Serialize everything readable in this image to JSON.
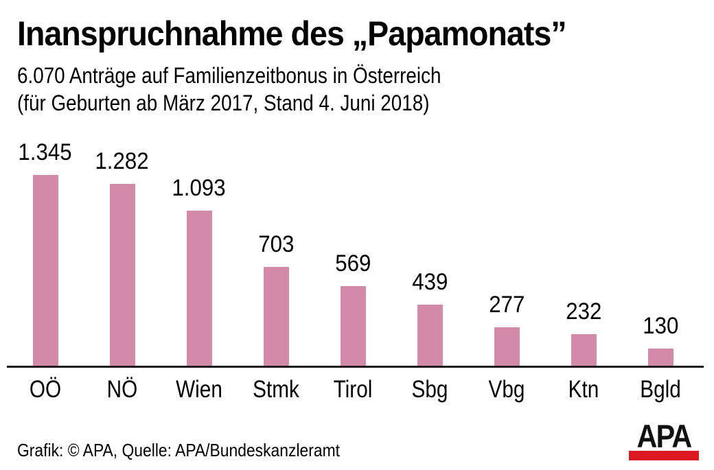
{
  "title": "Inanspruchnahme des „Papamonats”",
  "subtitle": {
    "line1": "6.070 Anträge auf Familienzeitbonus in Österreich",
    "line2": "(für Geburten ab März 2017, Stand 4. Juni 2018)"
  },
  "colors": {
    "bar": "#d389a8",
    "axis": "#1a1a1a",
    "logo_red": "#dc1a21",
    "text": "#000000",
    "background": "#ffffff"
  },
  "footer": {
    "credit": "Grafik: © APA, Quelle: APA/Bundeskanzleramt",
    "logo_text": "APA"
  },
  "chart_data": {
    "type": "bar",
    "title": "Inanspruchnahme des „Papamonats”",
    "subtitle": "6.070 Anträge auf Familienzeitbonus in Österreich (für Geburten ab März 2017, Stand 4. Juni 2018)",
    "total_label": "6.070",
    "categories": [
      "OÖ",
      "NÖ",
      "Wien",
      "Stmk",
      "Tirol",
      "Sbg",
      "Vbg",
      "Ktn",
      "Bgld"
    ],
    "values": [
      1345,
      1282,
      1093,
      703,
      569,
      439,
      277,
      232,
      130
    ],
    "value_labels": [
      "1.345",
      "1.282",
      "1.093",
      "703",
      "569",
      "439",
      "277",
      "232",
      "130"
    ],
    "xlabel": "",
    "ylabel": "",
    "ylim": [
      0,
      1400
    ],
    "grid": false,
    "legend": "none",
    "bar_color": "#d389a8"
  }
}
